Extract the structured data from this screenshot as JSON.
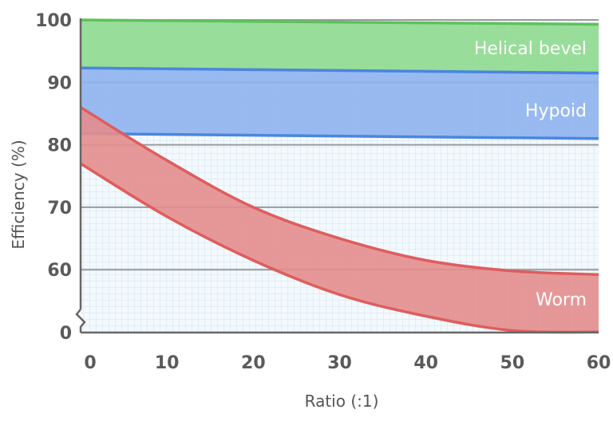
{
  "chart_data": {
    "type": "area",
    "title": "",
    "xlabel": "Ratio (:1)",
    "ylabel": "Efficiency (%)",
    "xlim": [
      0,
      60
    ],
    "x_ticks": [
      "0",
      "10",
      "20",
      "30",
      "40",
      "50",
      "60"
    ],
    "y_ticks": [
      "100",
      "90",
      "80",
      "70",
      "60",
      "0"
    ],
    "y_axis_break": true,
    "grid": true,
    "series": [
      {
        "name": "Helical bevel",
        "color": "#5cc25c",
        "fill": "#8fd98f",
        "x": [
          0,
          60
        ],
        "upper": [
          100,
          99.3
        ],
        "lower": [
          92.3,
          91.5
        ]
      },
      {
        "name": "Hypoid",
        "color": "#4a86e0",
        "fill": "#8fb3ee",
        "x": [
          0,
          60
        ],
        "upper": [
          92.3,
          91.5
        ],
        "lower": [
          81.8,
          81.0
        ]
      },
      {
        "name": "Worm",
        "color": "#df5d5d",
        "fill": "#e48d8d",
        "x": [
          0,
          10,
          20,
          30,
          40,
          50,
          60
        ],
        "upper": [
          86,
          77.5,
          70,
          65,
          61.5,
          59.8,
          59.3
        ],
        "lower": [
          77,
          68.5,
          61.5,
          56.5,
          53.5,
          51.5,
          51.3
        ]
      }
    ]
  }
}
